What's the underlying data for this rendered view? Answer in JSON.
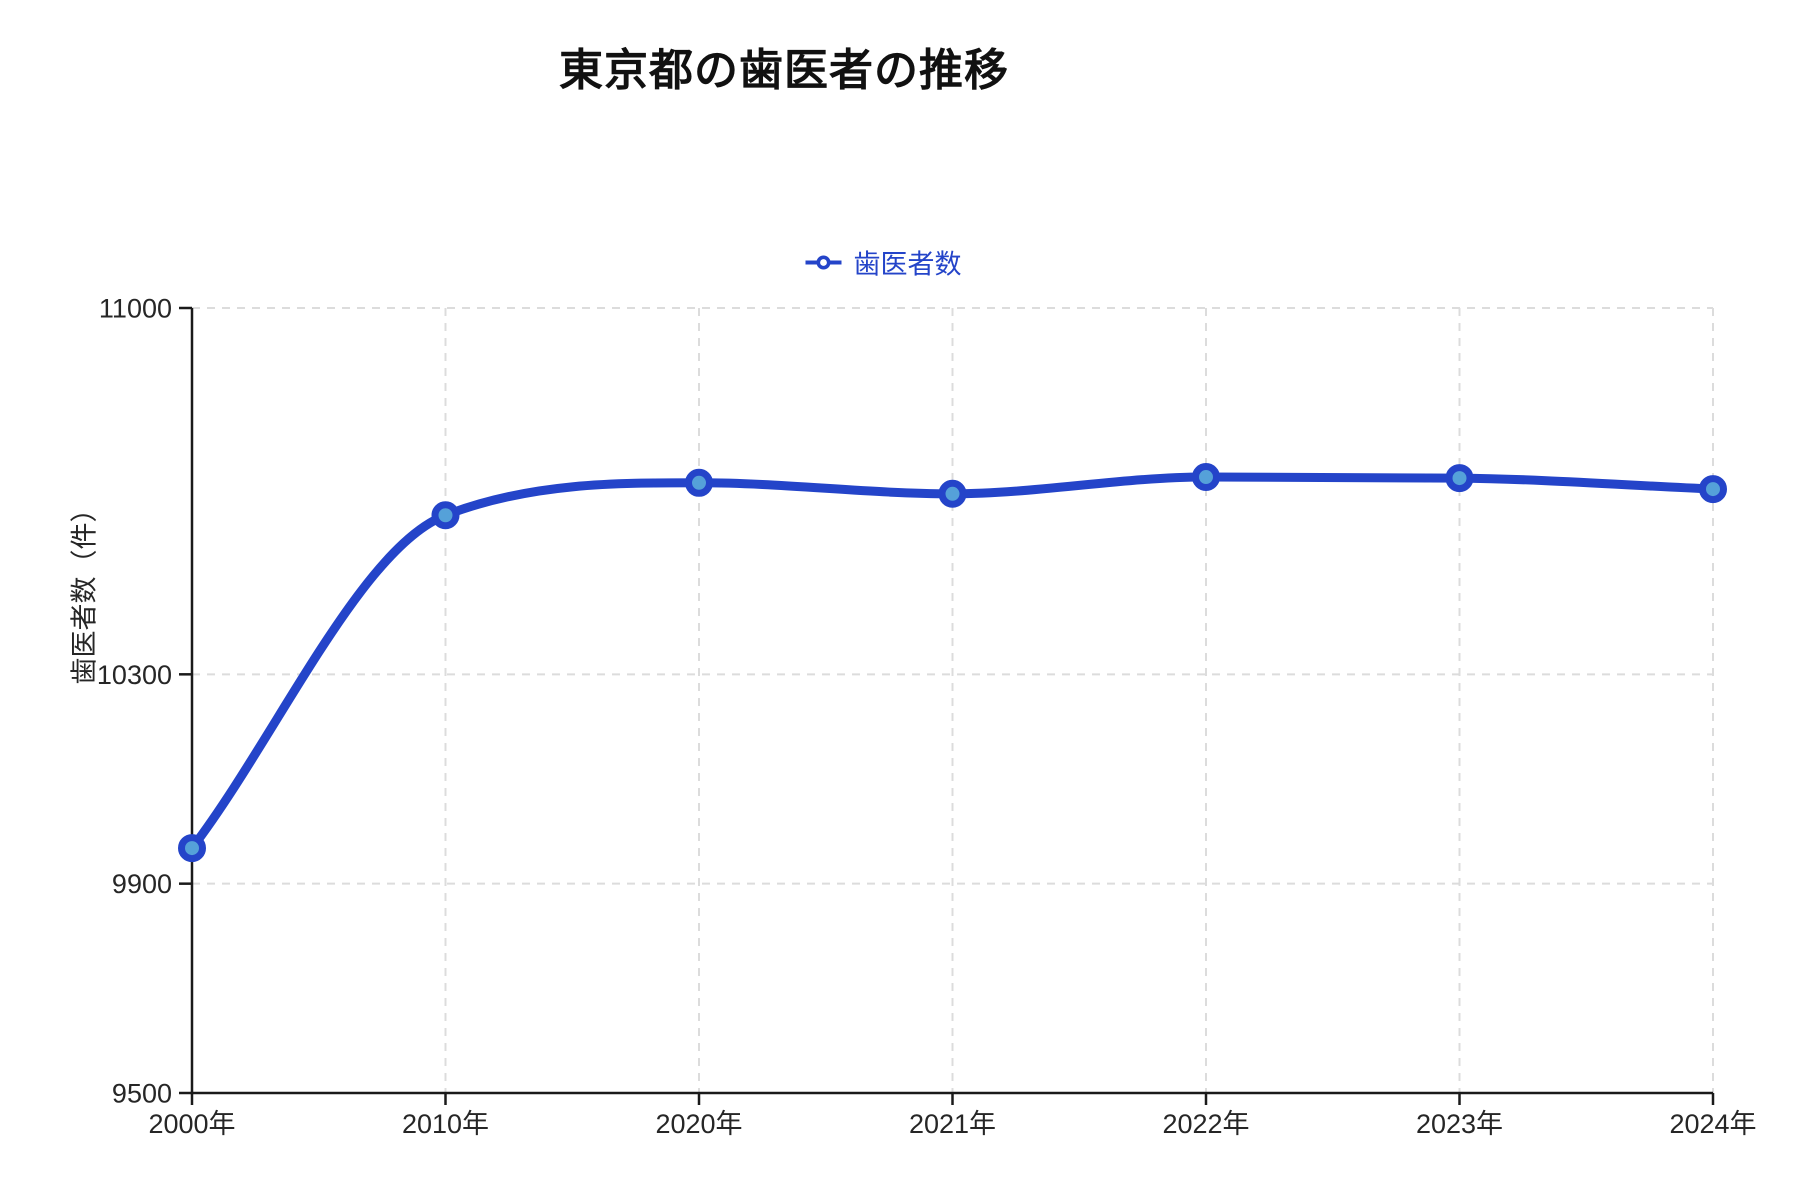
{
  "chart_data": {
    "type": "line",
    "title": "東京都の歯医者の推移",
    "ylabel": "歯医者数（件）",
    "xlabel": "",
    "categories": [
      "2000年",
      "2010年",
      "2020年",
      "2021年",
      "2022年",
      "2023年",
      "2024年"
    ],
    "series": [
      {
        "name": "歯医者数",
        "values": [
          9968,
          10604,
          10666,
          10645,
          10677,
          10675,
          10654
        ]
      }
    ],
    "ylim": [
      9500,
      11000
    ],
    "yticks": [
      9500,
      9900,
      10300,
      11000
    ],
    "grid": "dashed",
    "legend_position": "top",
    "curve": "monotone",
    "colors": {
      "line": "#2444c9",
      "marker_fill": "#55a1d9",
      "grid": "#dcdcdc",
      "axis": "#1a1a1a",
      "text": "#262626",
      "legend_text": "#2444c9",
      "title": "#111111"
    }
  }
}
